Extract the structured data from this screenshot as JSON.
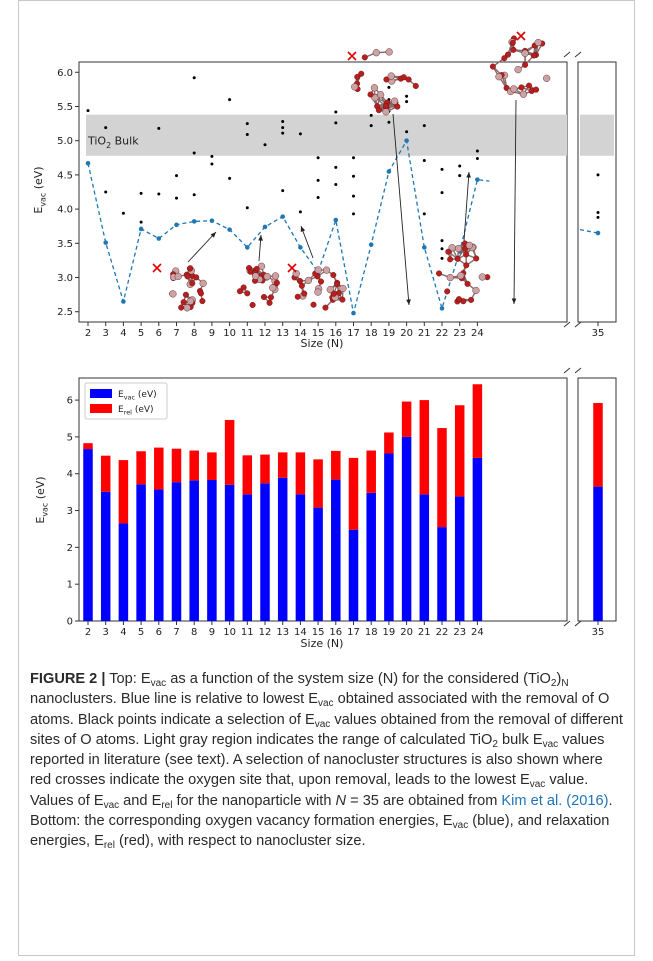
{
  "chart_data": [
    {
      "type": "scatter",
      "panel": "top",
      "xlabel": "Size (N)",
      "ylabel": "E_vac (eV)",
      "ylim": [
        2.35,
        6.15
      ],
      "yticks": [
        "2.5",
        "3.0",
        "3.5",
        "4.0",
        "4.5",
        "5.0",
        "5.5",
        "6.0"
      ],
      "x_categories": [
        "2",
        "3",
        "4",
        "5",
        "6",
        "7",
        "8",
        "9",
        "10",
        "11",
        "12",
        "13",
        "14",
        "15",
        "16",
        "17",
        "18",
        "19",
        "20",
        "21",
        "22",
        "23",
        "24",
        "35"
      ],
      "bulk_band": {
        "label": "TiO₂ Bulk",
        "ymin": 4.78,
        "ymax": 5.38
      },
      "lowest_line": {
        "name": "lowest E_vac",
        "color": "#1f77b4",
        "values": [
          4.67,
          3.51,
          2.65,
          3.71,
          3.57,
          3.77,
          3.82,
          3.83,
          3.7,
          3.44,
          3.74,
          3.89,
          3.44,
          3.08,
          3.84,
          2.48,
          3.48,
          4.55,
          5.0,
          3.44,
          2.55,
          3.38,
          4.43,
          3.65
        ]
      },
      "site_points": {
        "color": "#000000",
        "points": [
          [
            2,
            5.44
          ],
          [
            3,
            4.25
          ],
          [
            3,
            5.19
          ],
          [
            4,
            3.94
          ],
          [
            5,
            4.23
          ],
          [
            5,
            3.81
          ],
          [
            6,
            5.18
          ],
          [
            6,
            4.22
          ],
          [
            7,
            4.49
          ],
          [
            7,
            4.16
          ],
          [
            8,
            5.92
          ],
          [
            8,
            4.82
          ],
          [
            8,
            4.21
          ],
          [
            9,
            4.77
          ],
          [
            9,
            4.66
          ],
          [
            10,
            5.6
          ],
          [
            10,
            4.45
          ],
          [
            11,
            5.25
          ],
          [
            11,
            5.09
          ],
          [
            11,
            4.02
          ],
          [
            12,
            4.94
          ],
          [
            13,
            5.28
          ],
          [
            13,
            5.19
          ],
          [
            13,
            5.11
          ],
          [
            13,
            4.27
          ],
          [
            14,
            5.1
          ],
          [
            14,
            3.96
          ],
          [
            15,
            4.75
          ],
          [
            15,
            4.42
          ],
          [
            15,
            4.17
          ],
          [
            16,
            5.42
          ],
          [
            16,
            5.26
          ],
          [
            16,
            4.61
          ],
          [
            16,
            4.36
          ],
          [
            17,
            4.75
          ],
          [
            17,
            4.48
          ],
          [
            17,
            4.19
          ],
          [
            17,
            3.93
          ],
          [
            18,
            5.37
          ],
          [
            18,
            5.22
          ],
          [
            19,
            5.78
          ],
          [
            19,
            5.6
          ],
          [
            19,
            5.43
          ],
          [
            19,
            5.27
          ],
          [
            20,
            5.65
          ],
          [
            20,
            5.57
          ],
          [
            20,
            5.13
          ],
          [
            21,
            5.22
          ],
          [
            21,
            4.71
          ],
          [
            21,
            3.93
          ],
          [
            22,
            4.58
          ],
          [
            22,
            4.24
          ],
          [
            22,
            3.54
          ],
          [
            22,
            3.42
          ],
          [
            22,
            3.28
          ],
          [
            23,
            4.63
          ],
          [
            23,
            4.49
          ],
          [
            24,
            4.85
          ],
          [
            24,
            4.74
          ],
          [
            35,
            4.5
          ],
          [
            35,
            3.95
          ],
          [
            35,
            3.88
          ]
        ]
      },
      "insets": [
        "N=8",
        "N=10",
        "N=13",
        "N=17",
        "N=20",
        "N=22"
      ]
    },
    {
      "type": "bar",
      "panel": "bottom",
      "stacked": true,
      "xlabel": "Size (N)",
      "ylabel": "E_vac (eV)",
      "ylim": [
        0,
        6.6
      ],
      "yticks": [
        "0",
        "1",
        "2",
        "3",
        "4",
        "5",
        "6"
      ],
      "categories": [
        "2",
        "3",
        "4",
        "5",
        "6",
        "7",
        "8",
        "9",
        "10",
        "11",
        "12",
        "13",
        "14",
        "15",
        "16",
        "17",
        "18",
        "19",
        "20",
        "21",
        "22",
        "23",
        "24",
        "35"
      ],
      "legend_position": "top-left",
      "series": [
        {
          "name": "E_vac (eV)",
          "color": "#0000ff",
          "values": [
            4.67,
            3.51,
            2.65,
            3.71,
            3.57,
            3.77,
            3.82,
            3.83,
            3.7,
            3.44,
            3.74,
            3.89,
            3.44,
            3.08,
            3.84,
            2.48,
            3.48,
            4.55,
            5.0,
            3.44,
            2.55,
            3.38,
            4.43,
            3.65
          ]
        },
        {
          "name": "E_rel (eV)",
          "color": "#ff0000",
          "values": [
            0.16,
            0.98,
            1.72,
            0.9,
            1.14,
            0.91,
            0.81,
            0.75,
            1.76,
            1.06,
            0.78,
            0.69,
            1.14,
            1.31,
            0.78,
            1.95,
            1.15,
            0.57,
            0.96,
            2.56,
            2.69,
            2.48,
            2.0,
            2.27
          ]
        }
      ]
    }
  ],
  "caption": {
    "label": "FIGURE 2 |",
    "html": " Top: E<sub>vac</sub> as a function of the system size (N) for the considered (TiO<sub>2</sub>)<sub>N</sub> nanoclusters. Blue line is relative to lowest E<sub>vac</sub> obtained associated with the removal of O atoms. Black points indicate a selection of E<sub>vac</sub> values obtained from the removal of different sites of O atoms. Light gray region indicates the range of calculated TiO<sub>2</sub> bulk E<sub>vac</sub> values reported in literature (see text). A selection of nanocluster structures is also shown where red crosses indicate the oxygen site that, upon removal, leads to the lowest E<sub>vac</sub> value. Values of E<sub>vac</sub> and E<sub>rel</sub> for the nanoparticle with <i>N</i> = 35 are obtained from <span class=\"link\">Kim et al. (2016)</span>. Bottom: the corresponding oxygen vacancy formation energies, E<sub>vac</sub> (blue), and relaxation energies, E<sub>rel</sub> (red), with respect to nanocluster size."
  }
}
